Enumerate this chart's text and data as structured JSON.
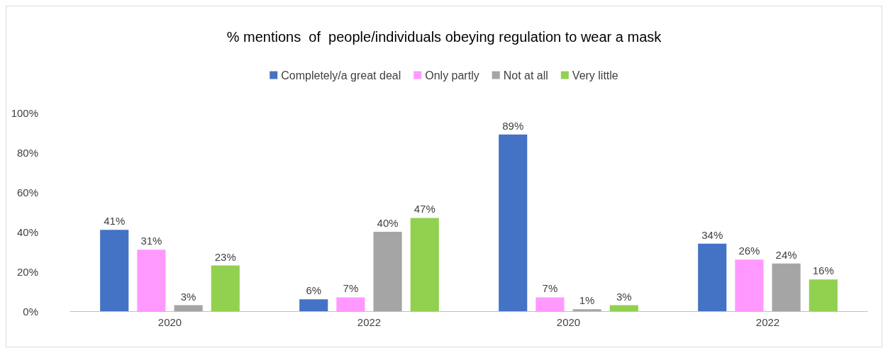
{
  "chart_data": {
    "type": "bar",
    "title": "% mentions  of  people/individuals obeying regulation to wear a mask",
    "categories": [
      "2020",
      "2022",
      "2020",
      "2022"
    ],
    "series": [
      {
        "name": "Completely/a great deal",
        "color": "#4472c4",
        "values": [
          41,
          6,
          89,
          34
        ],
        "value_labels": [
          "41%",
          "6%",
          "89%",
          "34%"
        ]
      },
      {
        "name": "Only partly",
        "color": "#ff99ff",
        "values": [
          31,
          7,
          7,
          26
        ],
        "value_labels": [
          "31%",
          "7%",
          "7%",
          "26%"
        ]
      },
      {
        "name": "Not at all",
        "color": "#a5a5a5",
        "values": [
          3,
          40,
          1,
          24
        ],
        "value_labels": [
          "3%",
          "40%",
          "1%",
          "24%"
        ]
      },
      {
        "name": "Very little",
        "color": "#92d050",
        "values": [
          23,
          47,
          3,
          16
        ],
        "value_labels": [
          "23%",
          "47%",
          "3%",
          "16%"
        ]
      }
    ],
    "ylim": [
      0,
      100
    ],
    "yticks": [
      {
        "value": 0,
        "label": "0%"
      },
      {
        "value": 20,
        "label": "20%"
      },
      {
        "value": 40,
        "label": "40%"
      },
      {
        "value": 60,
        "label": "60%"
      },
      {
        "value": 80,
        "label": "80%"
      },
      {
        "value": 100,
        "label": "100%"
      }
    ],
    "grid": false,
    "legend": "top"
  }
}
